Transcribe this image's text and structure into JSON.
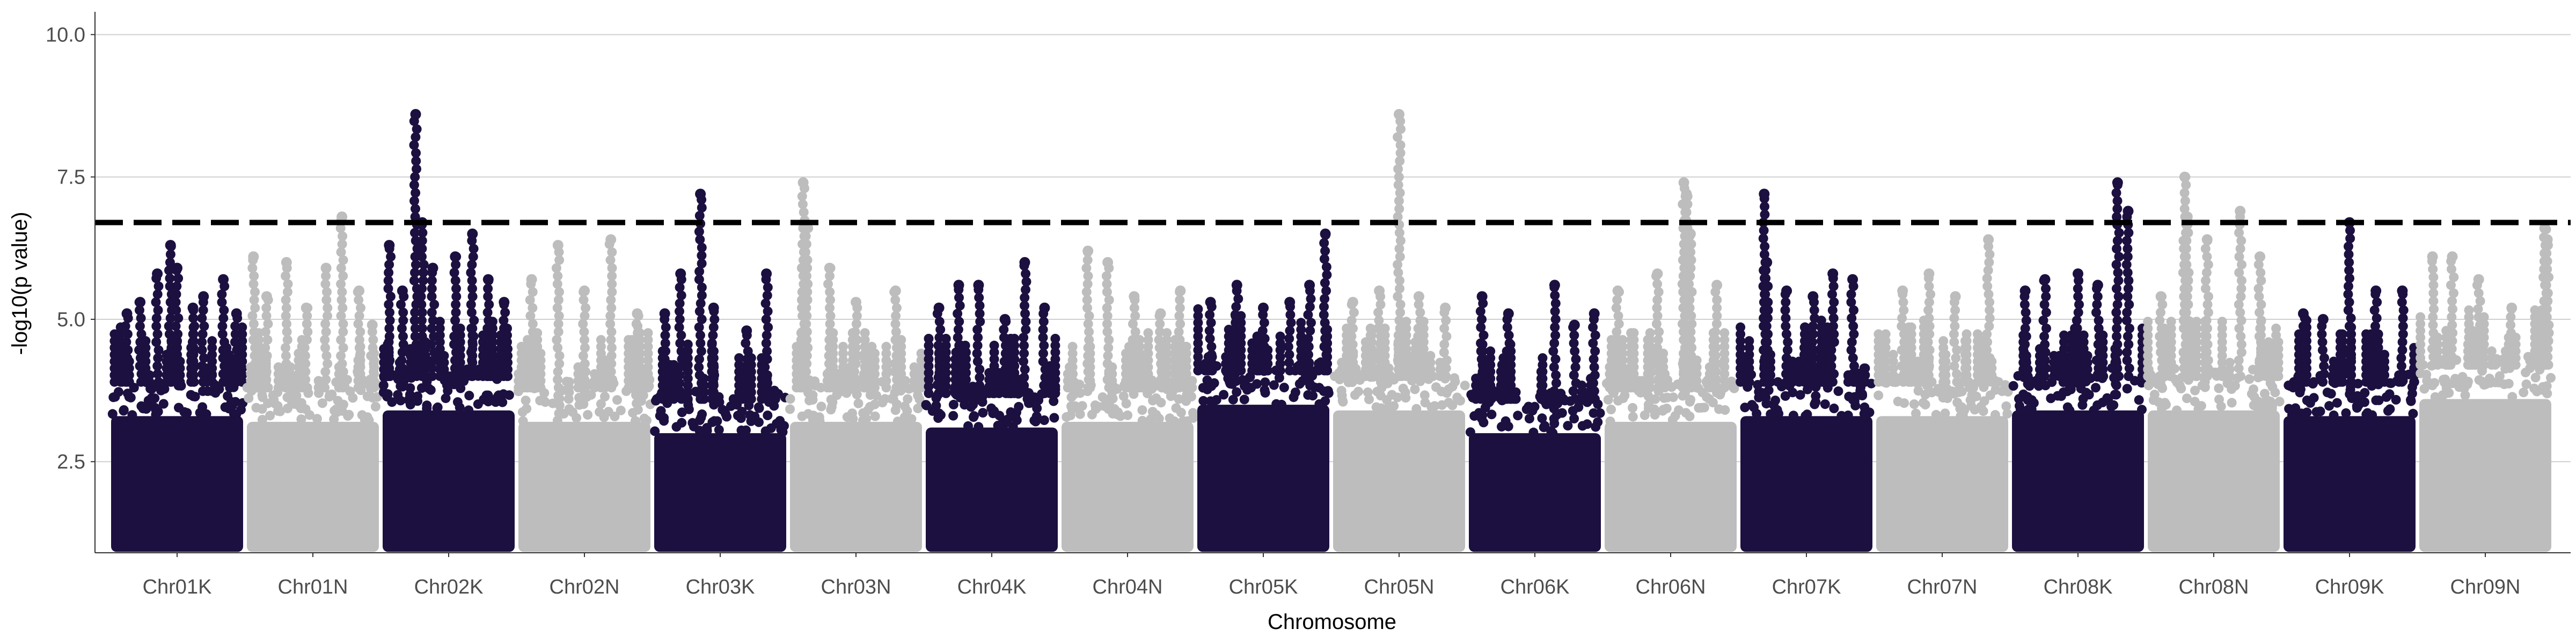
{
  "chart_data": {
    "type": "scatter",
    "subtype": "manhattan",
    "xlabel": "Chromosome",
    "ylabel": "-log10(p value)",
    "ylim": [
      0.9,
      10.4
    ],
    "y_ticks": [
      "2.5",
      "5.0",
      "7.5",
      "10.0"
    ],
    "y_tick_values": [
      2.5,
      5.0,
      7.5,
      10.0
    ],
    "grid": true,
    "legend": "none",
    "threshold": 6.7,
    "threshold_style": "dashed",
    "colors": {
      "odd": "#1c1040",
      "even": "#bdbdbd",
      "threshold": "#000000",
      "grid": "#d0d0d0"
    },
    "categories": [
      "Chr01K",
      "Chr01N",
      "Chr02K",
      "Chr02N",
      "Chr03K",
      "Chr03N",
      "Chr04K",
      "Chr04N",
      "Chr05K",
      "Chr05N",
      "Chr06K",
      "Chr06N",
      "Chr07K",
      "Chr07N",
      "Chr08K",
      "Chr08N",
      "Chr09K",
      "Chr09N"
    ],
    "chromosomes": [
      {
        "name": "Chr01K",
        "dense_max": 3.9,
        "peaks": [
          [
            0.12,
            5.1
          ],
          [
            0.22,
            5.3
          ],
          [
            0.35,
            5.8
          ],
          [
            0.45,
            6.3
          ],
          [
            0.5,
            5.9
          ],
          [
            0.62,
            5.2
          ],
          [
            0.7,
            5.4
          ],
          [
            0.85,
            5.7
          ],
          [
            0.95,
            5.1
          ]
        ]
      },
      {
        "name": "Chr01N",
        "dense_max": 3.8,
        "peaks": [
          [
            0.05,
            6.1
          ],
          [
            0.15,
            5.4
          ],
          [
            0.3,
            6.0
          ],
          [
            0.45,
            5.2
          ],
          [
            0.6,
            5.9
          ],
          [
            0.72,
            6.8
          ],
          [
            0.85,
            5.5
          ],
          [
            0.95,
            4.9
          ]
        ]
      },
      {
        "name": "Chr02K",
        "dense_max": 4.0,
        "peaks": [
          [
            0.05,
            6.3
          ],
          [
            0.15,
            5.5
          ],
          [
            0.25,
            8.6
          ],
          [
            0.3,
            6.7
          ],
          [
            0.38,
            5.9
          ],
          [
            0.55,
            6.1
          ],
          [
            0.68,
            6.5
          ],
          [
            0.8,
            5.7
          ],
          [
            0.92,
            5.3
          ]
        ]
      },
      {
        "name": "Chr02N",
        "dense_max": 3.8,
        "peaks": [
          [
            0.1,
            5.7
          ],
          [
            0.3,
            6.3
          ],
          [
            0.5,
            5.5
          ],
          [
            0.7,
            6.4
          ],
          [
            0.9,
            5.1
          ]
        ]
      },
      {
        "name": "Chr03K",
        "dense_max": 3.6,
        "peaks": [
          [
            0.08,
            5.1
          ],
          [
            0.2,
            5.8
          ],
          [
            0.35,
            7.2
          ],
          [
            0.45,
            5.2
          ],
          [
            0.7,
            4.8
          ],
          [
            0.85,
            5.8
          ]
        ]
      },
      {
        "name": "Chr03N",
        "dense_max": 3.8,
        "peaks": [
          [
            0.1,
            7.4
          ],
          [
            0.13,
            6.6
          ],
          [
            0.3,
            5.9
          ],
          [
            0.5,
            5.3
          ],
          [
            0.8,
            5.5
          ]
        ]
      },
      {
        "name": "Chr04K",
        "dense_max": 3.7,
        "peaks": [
          [
            0.1,
            5.2
          ],
          [
            0.25,
            5.6
          ],
          [
            0.4,
            5.6
          ],
          [
            0.6,
            5.0
          ],
          [
            0.75,
            6.0
          ],
          [
            0.9,
            5.2
          ]
        ]
      },
      {
        "name": "Chr04N",
        "dense_max": 3.8,
        "peaks": [
          [
            0.2,
            6.2
          ],
          [
            0.35,
            6.0
          ],
          [
            0.55,
            5.4
          ],
          [
            0.75,
            5.1
          ],
          [
            0.9,
            5.5
          ]
        ]
      },
      {
        "name": "Chr05K",
        "dense_max": 4.1,
        "peaks": [
          [
            0.1,
            5.3
          ],
          [
            0.3,
            5.6
          ],
          [
            0.5,
            5.2
          ],
          [
            0.7,
            5.3
          ],
          [
            0.85,
            5.6
          ],
          [
            0.97,
            6.5
          ]
        ]
      },
      {
        "name": "Chr05N",
        "dense_max": 4.0,
        "peaks": [
          [
            0.15,
            5.3
          ],
          [
            0.35,
            5.5
          ],
          [
            0.5,
            8.6
          ],
          [
            0.65,
            5.4
          ],
          [
            0.85,
            5.2
          ]
        ]
      },
      {
        "name": "Chr06K",
        "dense_max": 3.6,
        "peaks": [
          [
            0.1,
            5.4
          ],
          [
            0.3,
            5.1
          ],
          [
            0.65,
            5.6
          ],
          [
            0.8,
            4.9
          ],
          [
            0.95,
            5.1
          ]
        ]
      },
      {
        "name": "Chr06N",
        "dense_max": 3.8,
        "peaks": [
          [
            0.1,
            5.5
          ],
          [
            0.4,
            5.8
          ],
          [
            0.6,
            7.4
          ],
          [
            0.62,
            7.2
          ],
          [
            0.65,
            6.5
          ],
          [
            0.85,
            5.6
          ]
        ]
      },
      {
        "name": "Chr07K",
        "dense_max": 3.9,
        "peaks": [
          [
            0.18,
            7.2
          ],
          [
            0.2,
            6.0
          ],
          [
            0.35,
            5.5
          ],
          [
            0.55,
            5.4
          ],
          [
            0.7,
            5.8
          ],
          [
            0.85,
            5.7
          ]
        ]
      },
      {
        "name": "Chr07N",
        "dense_max": 3.9,
        "peaks": [
          [
            0.2,
            5.5
          ],
          [
            0.4,
            5.8
          ],
          [
            0.6,
            5.4
          ],
          [
            0.85,
            6.4
          ]
        ]
      },
      {
        "name": "Chr08K",
        "dense_max": 4.0,
        "peaks": [
          [
            0.1,
            5.5
          ],
          [
            0.25,
            5.7
          ],
          [
            0.5,
            5.8
          ],
          [
            0.65,
            5.6
          ],
          [
            0.8,
            7.4
          ],
          [
            0.88,
            6.9
          ]
        ]
      },
      {
        "name": "Chr08N",
        "dense_max": 4.0,
        "peaks": [
          [
            0.1,
            5.4
          ],
          [
            0.28,
            7.5
          ],
          [
            0.3,
            6.8
          ],
          [
            0.45,
            6.4
          ],
          [
            0.7,
            6.9
          ],
          [
            0.85,
            6.1
          ]
        ]
      },
      {
        "name": "Chr09K",
        "dense_max": 3.9,
        "peaks": [
          [
            0.15,
            5.1
          ],
          [
            0.3,
            5.0
          ],
          [
            0.5,
            6.7
          ],
          [
            0.7,
            5.5
          ],
          [
            0.9,
            5.5
          ]
        ]
      },
      {
        "name": "Chr09N",
        "dense_max": 4.2,
        "peaks": [
          [
            0.1,
            6.1
          ],
          [
            0.25,
            6.1
          ],
          [
            0.45,
            5.7
          ],
          [
            0.7,
            5.2
          ],
          [
            0.95,
            6.6
          ],
          [
            0.97,
            6.4
          ]
        ]
      }
    ]
  }
}
